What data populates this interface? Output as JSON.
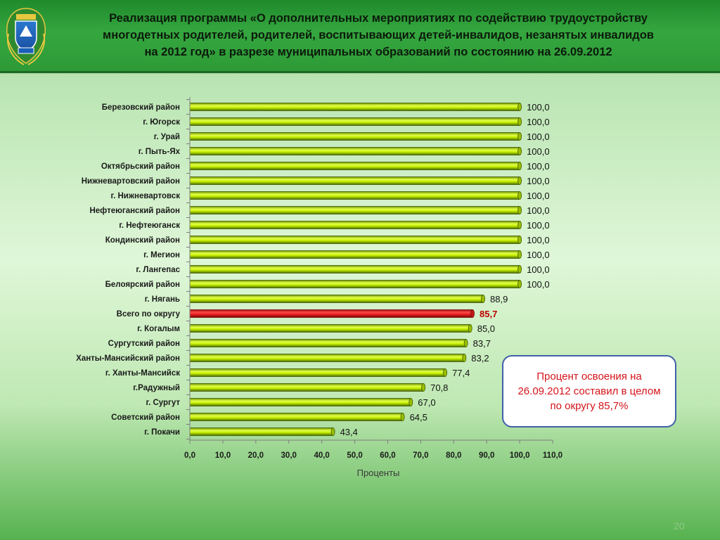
{
  "header": {
    "title_line1": "Реализация программы «О дополнительных мероприятиях по содействию трудоустройству",
    "title_line2": "многодетных родителей, родителей, воспитывающих детей-инвалидов, незанятых инвалидов",
    "title_line3": "на 2012 год» в разрезе муниципальных образований по состоянию на 26.09.2012",
    "emblem_icon": "coat-of-arms-emblem"
  },
  "callout": {
    "text": "Процент освоения на 26.09.2012 составил в целом по округу 85,7%"
  },
  "page_number": "20",
  "colors": {
    "bar": "#c4f000",
    "bar_dark": "#3f5a00",
    "highlight_bar": "#e62020",
    "highlight_label": "#c00000",
    "axis": "#7f7f7f"
  },
  "chart_data": {
    "type": "bar",
    "orientation": "horizontal",
    "categories": [
      "Березовский район",
      "г. Югорск",
      "г. Урай",
      "г. Пыть-Ях",
      "Октябрьский район",
      "Нижневартовский район",
      "г. Нижневартовск",
      "Нефтеюганский район",
      "г. Нефтеюганск",
      "Кондинский район",
      "г. Мегион",
      "г. Лангепас",
      "Белоярский  район",
      "г. Нягань",
      "Всего по округу",
      "г. Когалым",
      "Сургутский район",
      "Ханты-Мансийский район",
      "г. Ханты-Мансийск",
      "г.Радужный",
      "г. Сургут",
      "Советский район",
      "г. Покачи"
    ],
    "values": [
      100.0,
      100.0,
      100.0,
      100.0,
      100.0,
      100.0,
      100.0,
      100.0,
      100.0,
      100.0,
      100.0,
      100.0,
      100.0,
      88.9,
      85.7,
      85.0,
      83.7,
      83.2,
      77.4,
      70.8,
      67.0,
      64.5,
      43.4
    ],
    "value_labels": [
      "100,0",
      "100,0",
      "100,0",
      "100,0",
      "100,0",
      "100,0",
      "100,0",
      "100,0",
      "100,0",
      "100,0",
      "100,0",
      "100,0",
      "100,0",
      "88,9",
      "85,7",
      "85,0",
      "83,7",
      "83,2",
      "77,4",
      "70,8",
      "67,0",
      "64,5",
      "43,4"
    ],
    "highlight_category": "Всего по округу",
    "xlim": [
      0,
      110
    ],
    "ticks": [
      0,
      10,
      20,
      30,
      40,
      50,
      60,
      70,
      80,
      90,
      100,
      110
    ],
    "tick_labels": [
      "0,0",
      "10,0",
      "20,0",
      "30,0",
      "40,0",
      "50,0",
      "60,0",
      "70,0",
      "80,0",
      "90,0",
      "100,0",
      "110,0"
    ],
    "xlabel": "Проценты",
    "grid": false
  }
}
